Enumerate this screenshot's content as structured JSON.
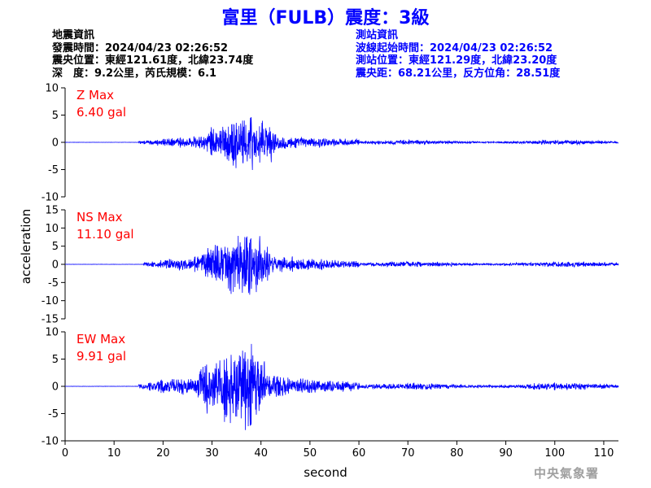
{
  "header": {
    "title": "富里（FULB）震度：3級"
  },
  "quake_info": {
    "heading": "地震資訊",
    "origin_time": "發震時間：2024/04/23 02:26:52",
    "epicenter": "震央位置：東經121.61度，北緯23.74度",
    "depth_magnitude": "深　度：9.2公里，芮氏規模：6.1"
  },
  "station_info": {
    "heading": "測站資訊",
    "arrival_time": "波線起始時間：2024/04/23 02:26:52",
    "location": "測站位置：東經121.29度，北緯23.20度",
    "distance_azimuth": "震央距：68.21公里，反方位角：28.51度"
  },
  "watermark": "中央氣象署",
  "colors": {
    "trace": "#0000ff",
    "label": "#ff0000",
    "axis": "#000000"
  },
  "chart_data": {
    "type": "line",
    "xlabel": "second",
    "ylabel": "acceleration",
    "xlim": [
      0,
      113
    ],
    "x_ticks": [
      0,
      10,
      20,
      30,
      40,
      50,
      60,
      70,
      80,
      90,
      100,
      110
    ],
    "panels": [
      {
        "component": "Z",
        "max_label": "Z Max",
        "max_value": "6.40 gal",
        "peak": 6.4,
        "ylim": [
          -10,
          10
        ],
        "y_ticks": [
          10,
          5,
          0,
          -5,
          -10
        ],
        "onset_s": 15,
        "peak_time_s": 37
      },
      {
        "component": "NS",
        "max_label": "NS Max",
        "max_value": "11.10 gal",
        "peak": 11.1,
        "ylim": [
          -15,
          15
        ],
        "y_ticks": [
          15,
          10,
          5,
          0,
          -5,
          -10,
          -15
        ],
        "onset_s": 16,
        "peak_time_s": 36
      },
      {
        "component": "EW",
        "max_label": "EW Max",
        "max_value": "9.91 gal",
        "peak": 9.91,
        "ylim": [
          -10,
          10
        ],
        "y_ticks": [
          10,
          5,
          0,
          -5,
          -10
        ],
        "onset_s": 15,
        "peak_time_s": 35
      }
    ]
  }
}
